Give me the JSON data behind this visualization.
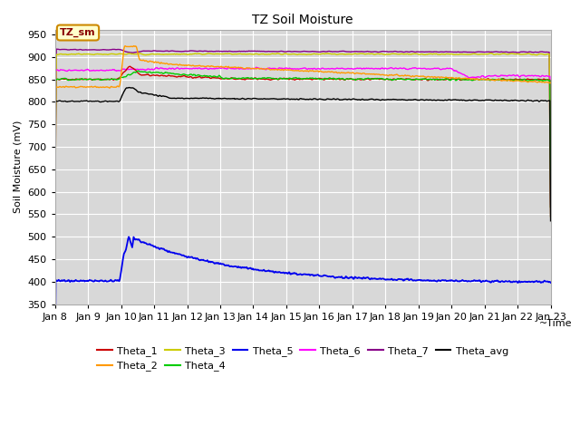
{
  "title": "TZ Soil Moisture",
  "ylabel": "Soil Moisture (mV)",
  "xlabel": "~Time",
  "ylim": [
    350,
    960
  ],
  "yticks": [
    350,
    400,
    450,
    500,
    550,
    600,
    650,
    700,
    750,
    800,
    850,
    900,
    950
  ],
  "background_color": "#d8d8d8",
  "legend_label": "TZ_sm",
  "legend_box_color": "#ffffcc",
  "legend_box_border": "#cc8800",
  "series_colors": {
    "Theta_1": "#cc0000",
    "Theta_2": "#ff9900",
    "Theta_3": "#cccc00",
    "Theta_4": "#00cc00",
    "Theta_5": "#0000ee",
    "Theta_6": "#ff00ff",
    "Theta_7": "#880088",
    "Theta_avg": "#000000"
  }
}
